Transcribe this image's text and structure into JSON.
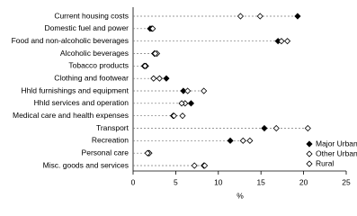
{
  "chart_data": {
    "type": "dot",
    "categories": [
      "Current housing costs",
      "Domestic fuel and power",
      "Food and non-alcoholic beverages",
      "Alcoholic beverages",
      "Tobacco products",
      "Clothing and footwear",
      "Hhld furnishings and equipment",
      "Hhld services and operation",
      "Medical care and health expenses",
      "Transport",
      "Recreation",
      "Personal care",
      "Misc. goods and services"
    ],
    "series": [
      {
        "name": "Major Urban",
        "color": "#000000",
        "marker": "filled",
        "values": [
          19.3,
          2.0,
          17.0,
          2.5,
          1.3,
          3.9,
          5.9,
          6.8,
          4.7,
          15.4,
          11.4,
          1.8,
          8.3
        ]
      },
      {
        "name": "Other Urban",
        "color": "#000000",
        "marker": "open",
        "values": [
          14.9,
          2.2,
          17.4,
          2.8,
          1.5,
          3.1,
          6.4,
          6.1,
          4.8,
          16.8,
          13.7,
          1.9,
          8.4
        ]
      },
      {
        "name": "Rural",
        "color": "#000000",
        "marker": "open",
        "values": [
          12.6,
          2.3,
          18.1,
          2.6,
          1.4,
          2.4,
          8.3,
          5.7,
          5.8,
          20.5,
          12.9,
          1.7,
          7.2
        ]
      }
    ],
    "xlabel": "%",
    "xlim": [
      0,
      25
    ],
    "xticks": [
      0,
      5,
      10,
      15,
      20,
      25
    ],
    "legend": "lower-right"
  }
}
